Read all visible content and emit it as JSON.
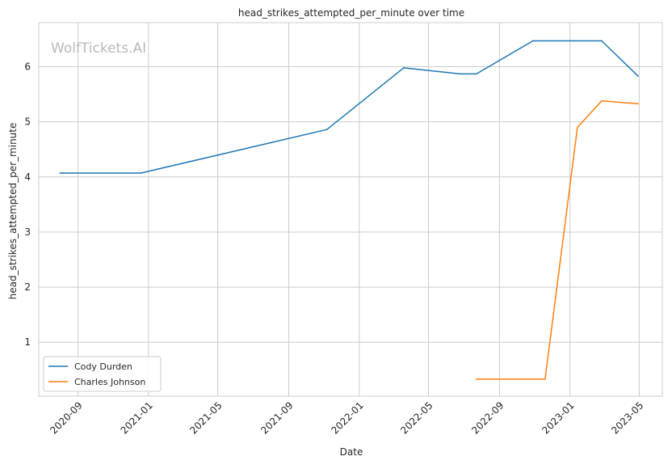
{
  "chart_data": {
    "type": "line",
    "title": "head_strikes_attempted_per_minute over time",
    "xlabel": "Date",
    "ylabel": "head_strikes_attempted_per_minute",
    "watermark": "WolfTickets.AI",
    "x_scale": "date",
    "xlim": [
      "2020-06-25",
      "2023-06-10"
    ],
    "ylim": [
      0.02,
      6.8
    ],
    "x_ticks": [
      "2020-09-01",
      "2021-01-01",
      "2021-05-01",
      "2021-09-01",
      "2022-01-01",
      "2022-05-01",
      "2022-09-01",
      "2023-01-01",
      "2023-05-01"
    ],
    "x_tick_labels": [
      "2020-09",
      "2021-01",
      "2021-05",
      "2021-09",
      "2022-01",
      "2022-05",
      "2022-09",
      "2023-01",
      "2023-05"
    ],
    "y_ticks": [
      1,
      2,
      3,
      4,
      5,
      6
    ],
    "grid": true,
    "legend_position": "lower-left",
    "series": [
      {
        "name": "Cody Durden",
        "color": "#1f77b4",
        "points": [
          {
            "x": "2020-08-01",
            "y": 4.07
          },
          {
            "x": "2020-12-19",
            "y": 4.07
          },
          {
            "x": "2021-11-06",
            "y": 4.86
          },
          {
            "x": "2022-03-19",
            "y": 5.98
          },
          {
            "x": "2022-06-25",
            "y": 5.87
          },
          {
            "x": "2022-07-23",
            "y": 5.87
          },
          {
            "x": "2022-10-29",
            "y": 6.47
          },
          {
            "x": "2023-02-25",
            "y": 6.47
          },
          {
            "x": "2023-04-29",
            "y": 5.83
          }
        ]
      },
      {
        "name": "Charles Johnson",
        "color": "#ff7f0e",
        "points": [
          {
            "x": "2022-07-23",
            "y": 0.33
          },
          {
            "x": "2022-11-19",
            "y": 0.33
          },
          {
            "x": "2023-01-14",
            "y": 4.9
          },
          {
            "x": "2023-02-25",
            "y": 5.38
          },
          {
            "x": "2023-04-29",
            "y": 5.33
          }
        ]
      }
    ]
  }
}
